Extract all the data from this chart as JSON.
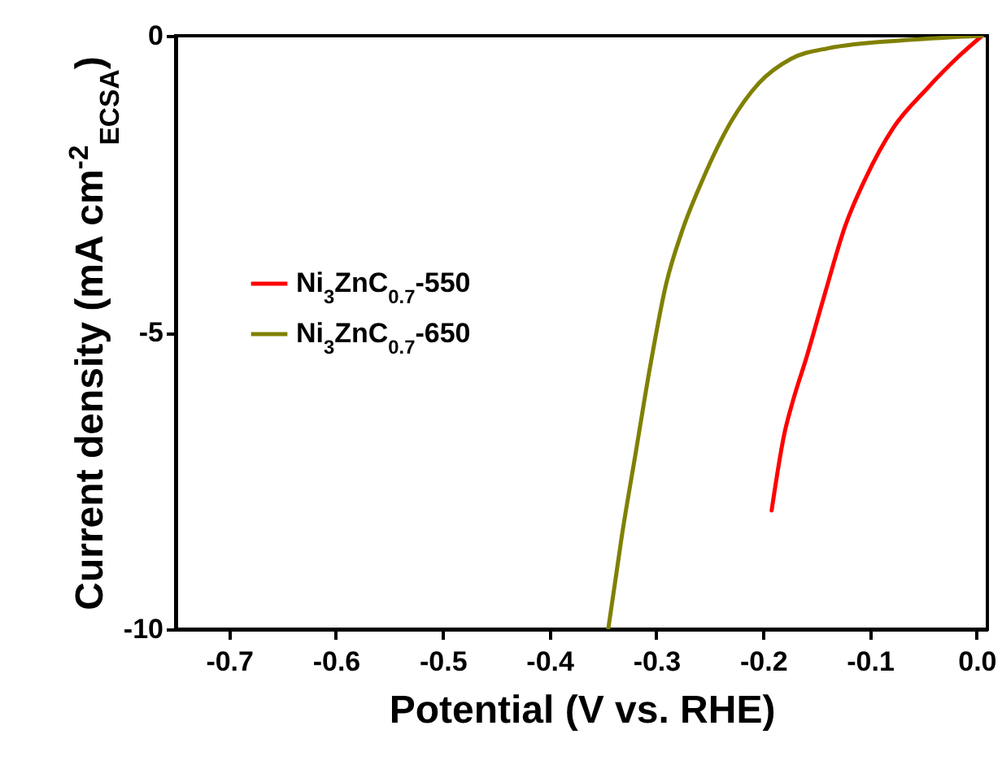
{
  "chart_data": {
    "type": "line",
    "xlabel": "Potential (V vs. RHE)",
    "ylabel": "Current density (mA cm$^{-2}$$_{ECSA}$)",
    "xlim": [
      -0.75,
      0.01
    ],
    "ylim": [
      -10,
      0
    ],
    "xticks": [
      -0.7,
      -0.6,
      -0.5,
      -0.4,
      -0.3,
      -0.2,
      -0.1,
      {
        "value": 0,
        "label": "0.0"
      }
    ],
    "yticks": [
      -10,
      -5,
      0
    ],
    "grid": false,
    "legend": "left",
    "line_style": "solid",
    "marker": "none",
    "series": [
      {
        "name": "Ni$_{3}$ZnC$_{0.7}$-550",
        "color": "#ff0000",
        "x": [
          0.005,
          -0.017,
          -0.047,
          -0.078,
          -0.104,
          -0.123,
          -0.143,
          -0.159,
          -0.172,
          -0.18,
          -0.192
        ],
        "values": [
          0,
          -0.35,
          -0.9,
          -1.55,
          -2.4,
          -3.2,
          -4.4,
          -5.4,
          -6.15,
          -6.7,
          -8.0
        ]
      },
      {
        "name": "Ni$_{3}$ZnC$_{0.7}$-650",
        "color": "#808000",
        "x": [
          0.005,
          -0.063,
          -0.139,
          -0.174,
          -0.204,
          -0.23,
          -0.256,
          -0.276,
          -0.291,
          -0.306,
          -0.319,
          -0.332,
          -0.345
        ],
        "values": [
          0,
          -0.07,
          -0.21,
          -0.39,
          -0.8,
          -1.45,
          -2.4,
          -3.3,
          -4.2,
          -5.6,
          -7.0,
          -8.4,
          -10
        ]
      }
    ]
  }
}
